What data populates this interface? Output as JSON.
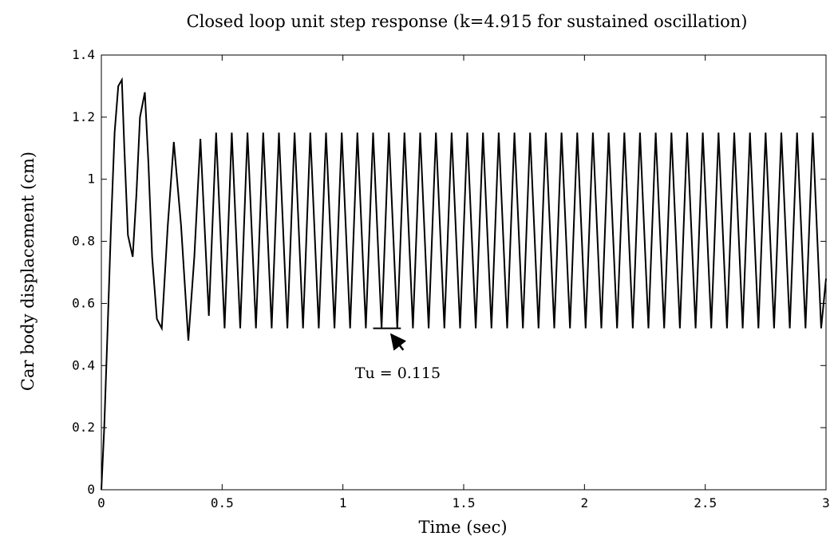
{
  "chart_data": {
    "type": "line",
    "title": "Closed loop unit step response (k=4.915 for sustained oscillation)",
    "xlabel": "Time (sec)",
    "ylabel": "Car body displacement (cm)",
    "xlim": [
      0,
      3
    ],
    "ylim": [
      0,
      1.4
    ],
    "xticks": [
      0,
      0.5,
      1,
      1.5,
      2,
      2.5,
      3
    ],
    "xtick_labels": [
      "0",
      "0.5",
      "1",
      "1.5",
      "2",
      "2.5",
      "3"
    ],
    "yticks": [
      0,
      0.2,
      0.4,
      0.6,
      0.8,
      1,
      1.2,
      1.4
    ],
    "ytick_labels": [
      "0",
      "0.2",
      "0.4",
      "0.6",
      "0.8",
      "1",
      "1.2",
      "1.4"
    ],
    "grid": false,
    "series": [
      {
        "color": "#000000",
        "x": [
          0,
          0.012,
          0.025,
          0.04,
          0.055,
          0.07,
          0.085,
          0.095,
          0.11,
          0.13,
          0.145,
          0.16,
          0.18,
          0.195,
          0.21,
          0.23,
          0.25,
          0.275,
          0.3,
          0.33,
          0.36,
          0.385,
          0.41,
          0.445,
          0.475,
          0.51,
          0.54,
          0.575,
          0.605,
          0.64,
          0.67,
          0.705,
          0.735,
          0.77,
          0.8,
          0.835,
          0.865,
          0.9,
          0.93,
          0.965,
          0.995,
          1.03,
          1.06,
          1.095,
          1.125,
          1.16,
          1.19,
          1.225,
          1.255,
          1.29,
          1.32,
          1.355,
          1.385,
          1.42,
          1.45,
          1.485,
          1.515,
          1.55,
          1.58,
          1.615,
          1.645,
          1.68,
          1.71,
          1.745,
          1.775,
          1.81,
          1.84,
          1.875,
          1.905,
          1.94,
          1.97,
          2.005,
          2.035,
          2.07,
          2.1,
          2.135,
          2.165,
          2.2,
          2.23,
          2.265,
          2.295,
          2.33,
          2.36,
          2.395,
          2.425,
          2.46,
          2.49,
          2.525,
          2.555,
          2.59,
          2.62,
          2.655,
          2.685,
          2.72,
          2.75,
          2.785,
          2.815,
          2.85,
          2.88,
          2.915,
          2.945,
          2.98,
          3.0
        ],
        "y": [
          0,
          0.2,
          0.5,
          0.85,
          1.15,
          1.3,
          1.32,
          1.1,
          0.82,
          0.75,
          0.95,
          1.2,
          1.28,
          1.05,
          0.75,
          0.55,
          0.52,
          0.85,
          1.12,
          0.85,
          0.48,
          0.75,
          1.13,
          0.56,
          1.15,
          0.52,
          1.15,
          0.52,
          1.15,
          0.52,
          1.15,
          0.52,
          1.15,
          0.52,
          1.15,
          0.52,
          1.15,
          0.52,
          1.15,
          0.52,
          1.15,
          0.52,
          1.15,
          0.52,
          1.15,
          0.52,
          1.15,
          0.52,
          1.15,
          0.52,
          1.15,
          0.52,
          1.15,
          0.52,
          1.15,
          0.52,
          1.15,
          0.52,
          1.15,
          0.52,
          1.15,
          0.52,
          1.15,
          0.52,
          1.15,
          0.52,
          1.15,
          0.52,
          1.15,
          0.52,
          1.15,
          0.52,
          1.15,
          0.52,
          1.15,
          0.52,
          1.15,
          0.52,
          1.15,
          0.52,
          1.15,
          0.52,
          1.15,
          0.52,
          1.15,
          0.52,
          1.15,
          0.52,
          1.15,
          0.52,
          1.15,
          0.52,
          1.15,
          0.52,
          1.15,
          0.52,
          1.15,
          0.52,
          1.15,
          0.52,
          1.15,
          0.52,
          0.68
        ]
      }
    ],
    "annotations": [
      {
        "text": "Tu = 0.115",
        "marker": {
          "x_start": 1.125,
          "x_end": 1.24,
          "y": 0.52
        },
        "arrow": {
          "from_x": 1.25,
          "from_y": 0.45,
          "to_x": 1.2,
          "to_y": 0.5
        },
        "text_anchor": {
          "x": 1.05,
          "y": 0.36
        }
      }
    ]
  }
}
